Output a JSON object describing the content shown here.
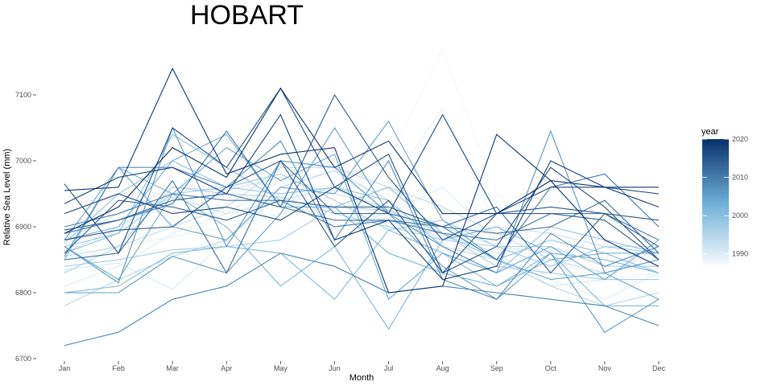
{
  "chart_data": {
    "type": "line",
    "title": "HOBART",
    "xlabel": "Month",
    "ylabel": "Relative Sea Level (mm)",
    "categories": [
      "Jan",
      "Feb",
      "Mar",
      "Apr",
      "May",
      "Jun",
      "Jul",
      "Aug",
      "Sep",
      "Oct",
      "Nov",
      "Dec"
    ],
    "y_ticks": [
      6700,
      6800,
      6900,
      7000,
      7100
    ],
    "ylim": [
      6700,
      7170
    ],
    "grid": false,
    "legend": {
      "title": "year",
      "type": "colorbar",
      "position": "right",
      "range": [
        1987,
        2020
      ],
      "ticks": [
        1990,
        2000,
        2010,
        2020
      ],
      "color_low": "#f7fbff",
      "color_high": "#08306b"
    },
    "series": [
      {
        "year": 1988,
        "values": [
          6905,
          6920,
          6930,
          6955,
          6985,
          6975,
          7000,
          7170,
          6950,
          6900,
          6880,
          6870
        ]
      },
      {
        "year": 1989,
        "values": [
          6850,
          6870,
          6885,
          6900,
          6920,
          6930,
          6960,
          7080,
          6900,
          6850,
          6820,
          6830
        ]
      },
      {
        "year": 1990,
        "values": [
          6810,
          6840,
          6890,
          6920,
          6970,
          6900,
          6920,
          6960,
          6880,
          6820,
          6790,
          6830
        ]
      },
      {
        "year": 1991,
        "values": [
          6835,
          6845,
          6805,
          6880,
          6950,
          6960,
          6900,
          6890,
          6860,
          6810,
          6820,
          6870
        ]
      },
      {
        "year": 1992,
        "values": [
          6880,
          6920,
          6960,
          6955,
          6975,
          6950,
          6930,
          6900,
          6870,
          6860,
          6850,
          6830
        ]
      },
      {
        "year": 1993,
        "values": [
          6860,
          6900,
          6945,
          6920,
          6940,
          6960,
          6925,
          6880,
          6900,
          6890,
          6870,
          6870
        ]
      },
      {
        "year": 1994,
        "values": [
          6855,
          6870,
          6900,
          6930,
          6990,
          6990,
          6960,
          6930,
          6890,
          6850,
          6830,
          6850
        ]
      },
      {
        "year": 1995,
        "values": [
          6780,
          6820,
          6855,
          6880,
          6960,
          6985,
          6940,
          6870,
          6850,
          6810,
          6780,
          6800
        ]
      },
      {
        "year": 1996,
        "values": [
          6830,
          6870,
          6960,
          6950,
          6945,
          6920,
          6900,
          6880,
          6870,
          6870,
          6840,
          6840
        ]
      },
      {
        "year": 1997,
        "values": [
          6840,
          6850,
          6865,
          6870,
          6880,
          6930,
          6925,
          6890,
          6840,
          6830,
          6820,
          6820
        ]
      },
      {
        "year": 1998,
        "values": [
          6870,
          6890,
          6950,
          6960,
          6980,
          6940,
          6895,
          6910,
          6870,
          6840,
          6870,
          6860
        ]
      },
      {
        "year": 1999,
        "values": [
          6875,
          6950,
          7000,
          6960,
          6950,
          6960,
          6940,
          6870,
          6830,
          6900,
          6880,
          6860
        ]
      },
      {
        "year": 2000,
        "values": [
          6860,
          6890,
          7040,
          6990,
          6940,
          6930,
          6960,
          6890,
          6850,
          6880,
          6860,
          6830
        ]
      },
      {
        "year": 2001,
        "values": [
          6800,
          6810,
          6860,
          6870,
          6860,
          6790,
          6895,
          6860,
          6810,
          6860,
          6780,
          6780
        ]
      },
      {
        "year": 2002,
        "values": [
          6850,
          6990,
          6950,
          6900,
          6810,
          6870,
          6745,
          6880,
          6900,
          6860,
          6850,
          6830
        ]
      },
      {
        "year": 2003,
        "values": [
          6880,
          6900,
          7000,
          7040,
          6930,
          6930,
          6860,
          6830,
          6810,
          6850,
          6860,
          6860
        ]
      },
      {
        "year": 2004,
        "values": [
          6870,
          6820,
          6950,
          7020,
          6970,
          7010,
          6790,
          6860,
          6830,
          6870,
          6820,
          6880
        ]
      },
      {
        "year": 2005,
        "values": [
          6880,
          6990,
          6900,
          6880,
          6960,
          6950,
          7060,
          6910,
          6850,
          6820,
          6830,
          6790
        ]
      },
      {
        "year": 2006,
        "values": [
          6800,
          6800,
          6855,
          6830,
          6920,
          7050,
          6920,
          6840,
          6790,
          6860,
          6740,
          6790
        ]
      },
      {
        "year": 2007,
        "values": [
          6870,
          6815,
          7050,
          6870,
          7000,
          6990,
          6920,
          6870,
          6830,
          7045,
          6830,
          6850
        ]
      },
      {
        "year": 2008,
        "values": [
          6855,
          6990,
          6990,
          6960,
          7030,
          6880,
          7000,
          6820,
          6790,
          6890,
          6840,
          6870
        ]
      },
      {
        "year": 2009,
        "values": [
          6720,
          6740,
          6790,
          6810,
          6860,
          6840,
          6800,
          6810,
          6800,
          6790,
          6780,
          6750
        ]
      },
      {
        "year": 2010,
        "values": [
          6900,
          6920,
          6950,
          6940,
          6940,
          6900,
          6910,
          6890,
          6880,
          6920,
          6920,
          6880
        ]
      },
      {
        "year": 2011,
        "values": [
          6890,
          6910,
          6935,
          7045,
          6930,
          6910,
          6910,
          6900,
          6850,
          6960,
          6980,
          6900
        ]
      },
      {
        "year": 2012,
        "values": [
          6850,
          6860,
          6970,
          6830,
          7000,
          6920,
          6920,
          6900,
          6890,
          6900,
          6940,
          6860
        ]
      },
      {
        "year": 2013,
        "values": [
          6860,
          6940,
          6930,
          6910,
          6940,
          6930,
          6930,
          6900,
          6930,
          6830,
          6920,
          6870
        ]
      },
      {
        "year": 2014,
        "values": [
          6895,
          6910,
          6940,
          6950,
          6930,
          7100,
          6975,
          6880,
          6920,
          6920,
          6910,
          6850
        ]
      },
      {
        "year": 2015,
        "values": [
          6880,
          6895,
          6900,
          6960,
          7000,
          6870,
          6940,
          6830,
          6920,
          6930,
          6920,
          6910
        ]
      },
      {
        "year": 2016,
        "values": [
          6965,
          6860,
          7050,
          6990,
          7110,
          6960,
          7010,
          6830,
          6870,
          6990,
          6930,
          6850
        ]
      },
      {
        "year": 2017,
        "values": [
          6920,
          6950,
          6920,
          6930,
          6910,
          6960,
          6920,
          7070,
          6920,
          6960,
          6960,
          6950
        ]
      },
      {
        "year": 2018,
        "values": [
          6935,
          6975,
          6990,
          6950,
          7070,
          6880,
          6910,
          6820,
          6840,
          7000,
          6960,
          6930
        ]
      },
      {
        "year": 2019,
        "values": [
          6955,
          6960,
          7140,
          6980,
          7010,
          7020,
          6800,
          6810,
          7040,
          6970,
          6960,
          6960
        ]
      },
      {
        "year": 2020,
        "values": [
          6890,
          6930,
          7020,
          6975,
          7110,
          6990,
          7030,
          6920,
          6920,
          6970,
          6880,
          6840
        ]
      }
    ]
  }
}
